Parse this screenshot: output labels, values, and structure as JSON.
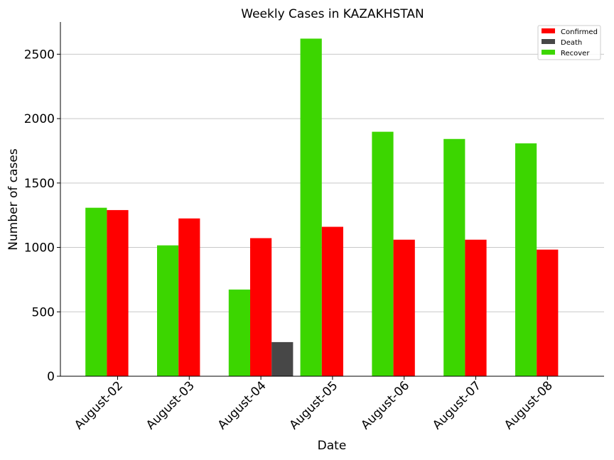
{
  "chart_data": {
    "type": "bar",
    "title": "Weekly Cases in KAZAKHSTAN",
    "xlabel": "Date",
    "ylabel": "Number of cases",
    "categories": [
      "August-02",
      "August-03",
      "August-04",
      "August-05",
      "August-06",
      "August-07",
      "August-08"
    ],
    "series": [
      {
        "name": "Recover",
        "color": "#3cd600",
        "values": [
          1308,
          1016,
          673,
          2621,
          1898,
          1842,
          1808
        ]
      },
      {
        "name": "Confirmed",
        "color": "#ff0000",
        "values": [
          1290,
          1225,
          1072,
          1160,
          1060,
          1060,
          983
        ]
      },
      {
        "name": "Death",
        "color": "#474747",
        "values": [
          0,
          0,
          265,
          0,
          0,
          0,
          0
        ]
      }
    ],
    "legend_order": [
      "Confirmed",
      "Death",
      "Recover"
    ],
    "ylim": [
      0,
      2750
    ],
    "yticks": [
      0,
      500,
      1000,
      1500,
      2000,
      2500
    ],
    "grid": "horizontal",
    "legend_position": "top-right"
  }
}
